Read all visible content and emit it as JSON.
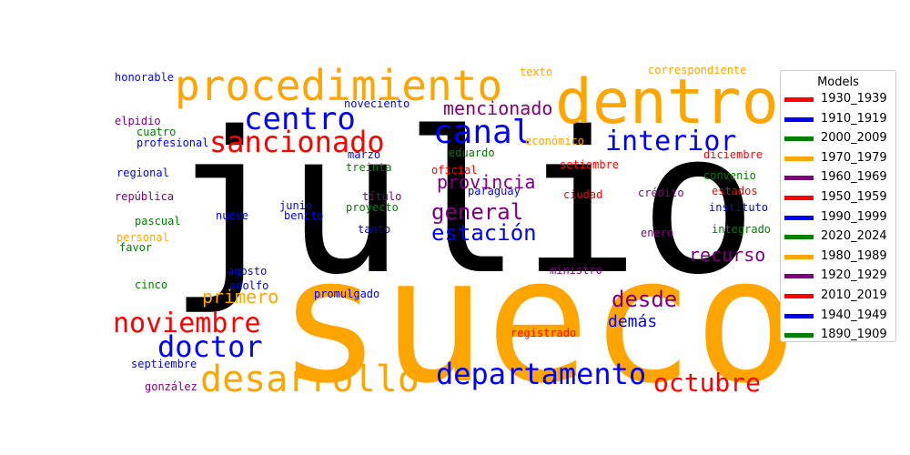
{
  "chart_data": {
    "type": "wordcloud",
    "legend": {
      "title": "Models",
      "placement": "right",
      "entries": [
        {
          "label": "1930_1939",
          "color": "#ff0000"
        },
        {
          "label": "1910_1919",
          "color": "#0000ff"
        },
        {
          "label": "2000_2009",
          "color": "#008000"
        },
        {
          "label": "1970_1979",
          "color": "#ffa500"
        },
        {
          "label": "1960_1969",
          "color": "#800080"
        },
        {
          "label": "1950_1959",
          "color": "#ff0000"
        },
        {
          "label": "1990_1999",
          "color": "#0000ff"
        },
        {
          "label": "2020_2024",
          "color": "#008000"
        },
        {
          "label": "1980_1989",
          "color": "#ffa500"
        },
        {
          "label": "1920_1929",
          "color": "#800080"
        },
        {
          "label": "2010_2019",
          "color": "#ff0000"
        },
        {
          "label": "1940_1949",
          "color": "#0000ff"
        },
        {
          "label": "1890_1909",
          "color": "#008000"
        }
      ]
    },
    "words": [
      {
        "text": "julio",
        "color": "#000000"
      },
      {
        "text": "sueco",
        "color": "#ffa500"
      },
      {
        "text": "dentro",
        "color": "#ffa500"
      },
      {
        "text": "procedimiento",
        "color": "#ffa500"
      },
      {
        "text": "sancionado",
        "color": "#ff0000"
      },
      {
        "text": "centro",
        "color": "#0000ff"
      },
      {
        "text": "canal",
        "color": "#0000ff"
      },
      {
        "text": "interior",
        "color": "#0000ff"
      },
      {
        "text": "desarrollo",
        "color": "#ffa500"
      },
      {
        "text": "departamento",
        "color": "#0000ff"
      },
      {
        "text": "noviembre",
        "color": "#ff0000"
      },
      {
        "text": "doctor",
        "color": "#0000ff"
      },
      {
        "text": "octubre",
        "color": "#ff0000"
      },
      {
        "text": "general",
        "color": "#800080"
      },
      {
        "text": "estación",
        "color": "#0000ff"
      },
      {
        "text": "desde",
        "color": "#800080"
      },
      {
        "text": "mencionado",
        "color": "#800080"
      },
      {
        "text": "provincia",
        "color": "#800080"
      },
      {
        "text": "recurso",
        "color": "#800080"
      },
      {
        "text": "primero",
        "color": "#ffa500"
      },
      {
        "text": "demás",
        "color": "#0000ff"
      },
      {
        "text": "honorable",
        "color": "#0000ff"
      },
      {
        "text": "texto",
        "color": "#ffa500"
      },
      {
        "text": "correspondiente",
        "color": "#ffa500"
      },
      {
        "text": "noveciento",
        "color": "#0000ff"
      },
      {
        "text": "elpidio",
        "color": "#800080"
      },
      {
        "text": "cuatro",
        "color": "#008000"
      },
      {
        "text": "profesional",
        "color": "#0000ff"
      },
      {
        "text": "económico",
        "color": "#ffa500"
      },
      {
        "text": "eduardo",
        "color": "#008000"
      },
      {
        "text": "marzo",
        "color": "#0000ff"
      },
      {
        "text": "regional",
        "color": "#0000ff"
      },
      {
        "text": "treinta",
        "color": "#008000"
      },
      {
        "text": "oficial",
        "color": "#ff0000"
      },
      {
        "text": "setiembre",
        "color": "#ff0000"
      },
      {
        "text": "diciembre",
        "color": "#ff0000"
      },
      {
        "text": "convenio",
        "color": "#008000"
      },
      {
        "text": "paraguay",
        "color": "#0000ff"
      },
      {
        "text": "república",
        "color": "#800080"
      },
      {
        "text": "título",
        "color": "#800080"
      },
      {
        "text": "ciudad",
        "color": "#ff0000"
      },
      {
        "text": "crédito",
        "color": "#800080"
      },
      {
        "text": "estados",
        "color": "#ff0000"
      },
      {
        "text": "junio",
        "color": "#0000ff"
      },
      {
        "text": "proyecto",
        "color": "#008000"
      },
      {
        "text": "benito",
        "color": "#0000ff"
      },
      {
        "text": "instituto",
        "color": "#0000ff"
      },
      {
        "text": "nueve",
        "color": "#0000ff"
      },
      {
        "text": "pascual",
        "color": "#008000"
      },
      {
        "text": "tanto",
        "color": "#0000ff"
      },
      {
        "text": "integrado",
        "color": "#008000"
      },
      {
        "text": "personal",
        "color": "#ffa500"
      },
      {
        "text": "enero",
        "color": "#800080"
      },
      {
        "text": "favor",
        "color": "#008000"
      },
      {
        "text": "agosto",
        "color": "#0000ff"
      },
      {
        "text": "ministro",
        "color": "#800080"
      },
      {
        "text": "adolfo",
        "color": "#0000ff"
      },
      {
        "text": "cinco",
        "color": "#008000"
      },
      {
        "text": "promulgado",
        "color": "#0000ff"
      },
      {
        "text": "registrado",
        "color": "#ff0000"
      },
      {
        "text": "septiembre",
        "color": "#0000ff"
      },
      {
        "text": "gonzález",
        "color": "#800080"
      }
    ]
  }
}
